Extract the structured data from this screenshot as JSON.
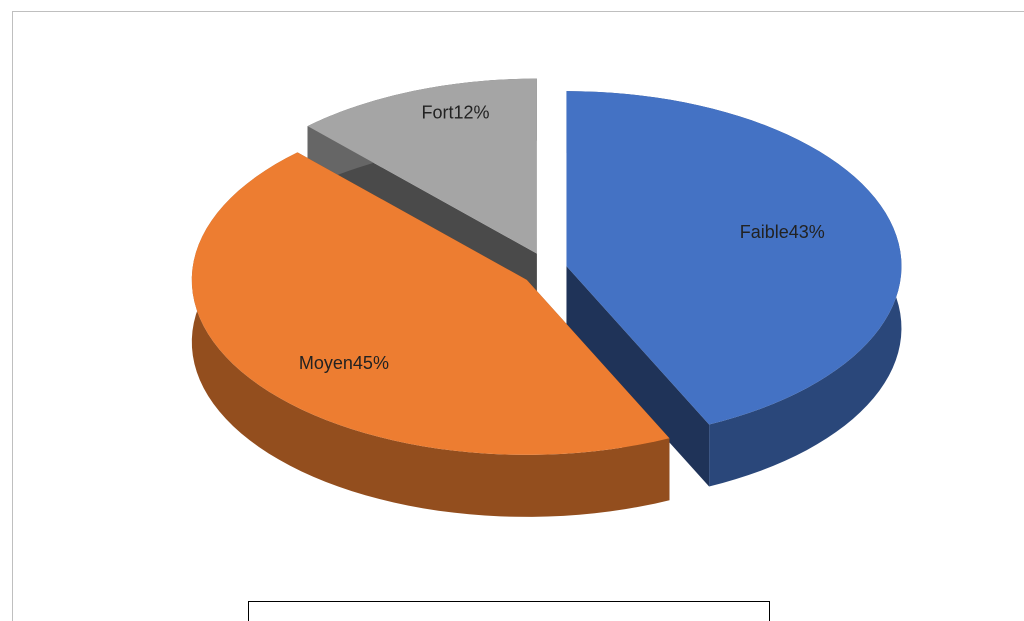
{
  "chart_data": {
    "type": "pie3d",
    "values": [
      43,
      45,
      12
    ],
    "value_labels": [
      "Faible43%",
      "Moyen45%",
      "Fort12%"
    ],
    "colors": [
      "#4472c4",
      "#ed7d31",
      "#a5a5a5"
    ]
  }
}
